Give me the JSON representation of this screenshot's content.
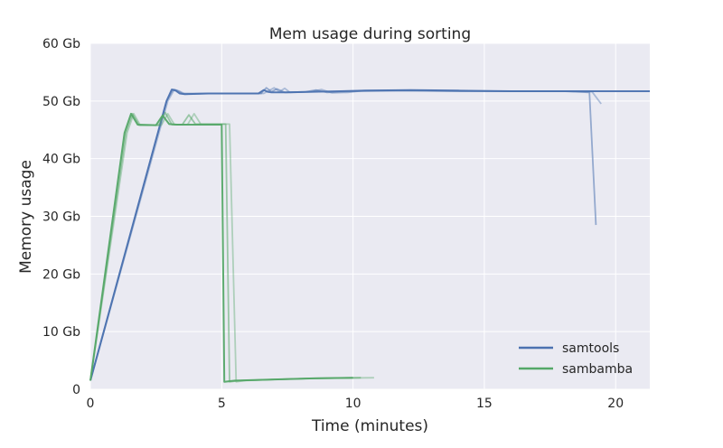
{
  "chart_data": {
    "type": "line",
    "title": "Mem usage during sorting",
    "xlabel": "Time (minutes)",
    "ylabel": "Memory usage",
    "xlim": [
      0,
      21.3
    ],
    "ylim": [
      0,
      60
    ],
    "x_ticks": [
      0,
      5,
      10,
      15,
      20
    ],
    "x_tick_labels": [
      "0",
      "5",
      "10",
      "15",
      "20"
    ],
    "y_ticks": [
      0,
      10,
      20,
      30,
      40,
      50,
      60
    ],
    "y_tick_labels": [
      "0",
      "10 Gb",
      "20 Gb",
      "30 Gb",
      "40 Gb",
      "50 Gb",
      "60 Gb"
    ],
    "grid": true,
    "legend_position": "lower-right",
    "background_color": "#eaeaf2",
    "series": [
      {
        "name": "samtools",
        "color": "#4c72b0",
        "runs": [
          {
            "x": [
              0,
              2.9,
              3.1,
              3.25,
              3.4,
              3.6,
              4.5,
              6.4,
              6.6,
              6.75,
              6.9,
              7.5,
              8.5,
              9.5,
              10.5,
              12.2,
              14,
              16,
              18,
              19.1,
              20,
              21.3
            ],
            "y": [
              1.5,
              50,
              52,
              51.8,
              51.3,
              51.2,
              51.3,
              51.3,
              51.9,
              51.6,
              51.5,
              51.5,
              51.6,
              51.7,
              51.8,
              51.9,
              51.8,
              51.7,
              51.7,
              51.7,
              51.7,
              51.7
            ]
          },
          {
            "x": [
              0,
              2.9,
              3.15,
              3.3,
              3.5,
              4.5,
              6.5,
              6.7,
              6.9,
              7.1,
              7.4,
              8.2,
              8.6,
              9.0,
              9.5,
              10.2,
              12,
              14,
              16,
              18,
              19.0,
              19.25
            ],
            "y": [
              1.5,
              50,
              52,
              51.8,
              51.3,
              51.3,
              51.3,
              52.3,
              51.6,
              52.1,
              51.5,
              51.6,
              51.9,
              51.5,
              51.6,
              51.7,
              51.8,
              51.7,
              51.7,
              51.7,
              51.5,
              28.5
            ]
          },
          {
            "x": [
              0,
              2.95,
              3.2,
              3.4,
              3.6,
              4.5,
              6.6,
              7.0,
              7.2,
              7.4,
              7.6,
              8.4,
              8.8,
              9.2,
              9.8,
              10.4,
              12,
              14,
              16,
              18,
              19.1,
              19.45
            ],
            "y": [
              1.5,
              50,
              52,
              51.7,
              51.2,
              51.3,
              51.3,
              52.3,
              51.6,
              52.2,
              51.5,
              51.6,
              52,
              51.4,
              51.5,
              51.8,
              51.8,
              51.7,
              51.7,
              51.7,
              51.6,
              49.5
            ]
          }
        ]
      },
      {
        "name": "sambamba",
        "color": "#55a868",
        "runs": [
          {
            "x": [
              0,
              1.3,
              1.55,
              1.8,
              2.5,
              2.75,
              3.0,
              3.3,
              4.8,
              5.0,
              5.1,
              5.5,
              7,
              8.5,
              10.0
            ],
            "y": [
              1.5,
              44.5,
              47.8,
              45.9,
              45.8,
              47.5,
              46.0,
              45.9,
              45.9,
              45.9,
              1.3,
              1.5,
              1.7,
              1.9,
              2.0
            ]
          },
          {
            "x": [
              0,
              1.35,
              1.6,
              1.85,
              2.6,
              2.85,
              3.1,
              3.5,
              3.75,
              4.0,
              4.9,
              5.15,
              5.3,
              5.7,
              7,
              8.5,
              10.3
            ],
            "y": [
              1.5,
              44.5,
              47.8,
              45.8,
              45.8,
              48.0,
              45.9,
              45.9,
              47.6,
              46.0,
              46.0,
              46.0,
              1.3,
              1.5,
              1.7,
              1.9,
              2.0
            ]
          },
          {
            "x": [
              0,
              1.4,
              1.65,
              1.9,
              2.7,
              2.95,
              3.2,
              3.7,
              3.95,
              4.2,
              5.0,
              5.3,
              5.55,
              5.9,
              7,
              8.5,
              10.8
            ],
            "y": [
              1.5,
              44.5,
              47.8,
              45.8,
              45.8,
              47.8,
              45.9,
              45.9,
              47.8,
              46.0,
              46.0,
              46.0,
              1.3,
              1.5,
              1.7,
              1.9,
              2.0
            ]
          }
        ]
      }
    ]
  }
}
